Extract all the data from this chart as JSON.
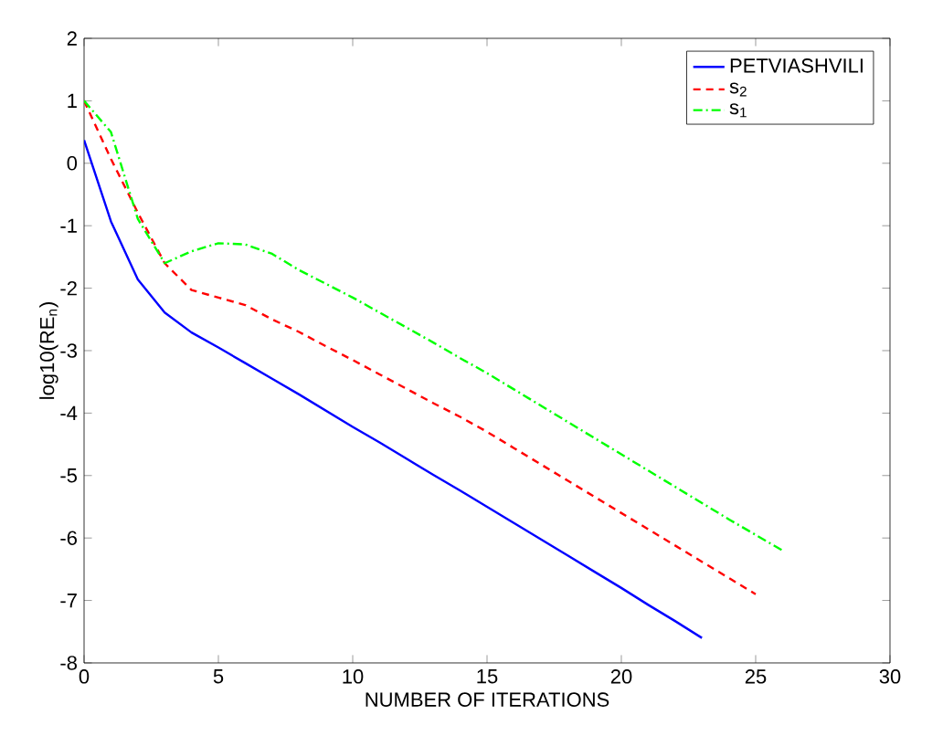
{
  "chart_data": {
    "type": "line",
    "xlabel": "NUMBER OF ITERATIONS",
    "ylabel": "log10(RE$_{n}$)",
    "xlim": [
      0,
      30
    ],
    "ylim": [
      -8,
      2
    ],
    "xticks": [
      0,
      5,
      10,
      15,
      20,
      25,
      30
    ],
    "yticks": [
      -8,
      -7,
      -6,
      -5,
      -4,
      -3,
      -2,
      -1,
      0,
      1,
      2
    ],
    "legend": "top right",
    "grid": false,
    "series": [
      {
        "name": "PETVIASHVILI",
        "color": "#0000ff",
        "line_style": "solid",
        "x": [
          0,
          1,
          2,
          3,
          4,
          5,
          6,
          7,
          8,
          9,
          10,
          11,
          12,
          13,
          14,
          15,
          16,
          17,
          18,
          19,
          20,
          21,
          22,
          23
        ],
        "values": [
          0.37,
          -0.93,
          -1.86,
          -2.39,
          -2.71,
          -2.95,
          -3.2,
          -3.45,
          -3.7,
          -3.96,
          -4.22,
          -4.47,
          -4.73,
          -4.99,
          -5.24,
          -5.5,
          -5.76,
          -6.02,
          -6.28,
          -6.54,
          -6.8,
          -7.07,
          -7.33,
          -7.6
        ]
      },
      {
        "name": "s$_{2}$",
        "color": "#ff0000",
        "line_style": "dashed",
        "x": [
          0,
          1,
          2,
          3,
          4,
          5,
          6,
          7,
          8,
          9,
          10,
          11,
          12,
          13,
          14,
          15,
          16,
          17,
          18,
          19,
          20,
          21,
          22,
          23,
          24,
          25
        ],
        "values": [
          1.0,
          0.07,
          -0.79,
          -1.6,
          -2.03,
          -2.15,
          -2.27,
          -2.5,
          -2.7,
          -2.93,
          -3.15,
          -3.38,
          -3.61,
          -3.84,
          -4.06,
          -4.3,
          -4.56,
          -4.82,
          -5.08,
          -5.34,
          -5.6,
          -5.86,
          -6.12,
          -6.38,
          -6.64,
          -6.9
        ]
      },
      {
        "name": "s$_{1}$",
        "color": "#00ff00",
        "line_style": "dashdot",
        "x": [
          0,
          1,
          2,
          3,
          4,
          5,
          6,
          7,
          8,
          9,
          10,
          11,
          12,
          13,
          14,
          15,
          16,
          17,
          18,
          19,
          20,
          21,
          22,
          23,
          24,
          25,
          26
        ],
        "values": [
          1.0,
          0.5,
          -0.89,
          -1.6,
          -1.41,
          -1.28,
          -1.3,
          -1.45,
          -1.71,
          -1.93,
          -2.15,
          -2.39,
          -2.63,
          -2.87,
          -3.12,
          -3.36,
          -3.62,
          -3.88,
          -4.14,
          -4.4,
          -4.66,
          -4.92,
          -5.18,
          -5.44,
          -5.7,
          -5.95,
          -6.2
        ]
      }
    ]
  }
}
